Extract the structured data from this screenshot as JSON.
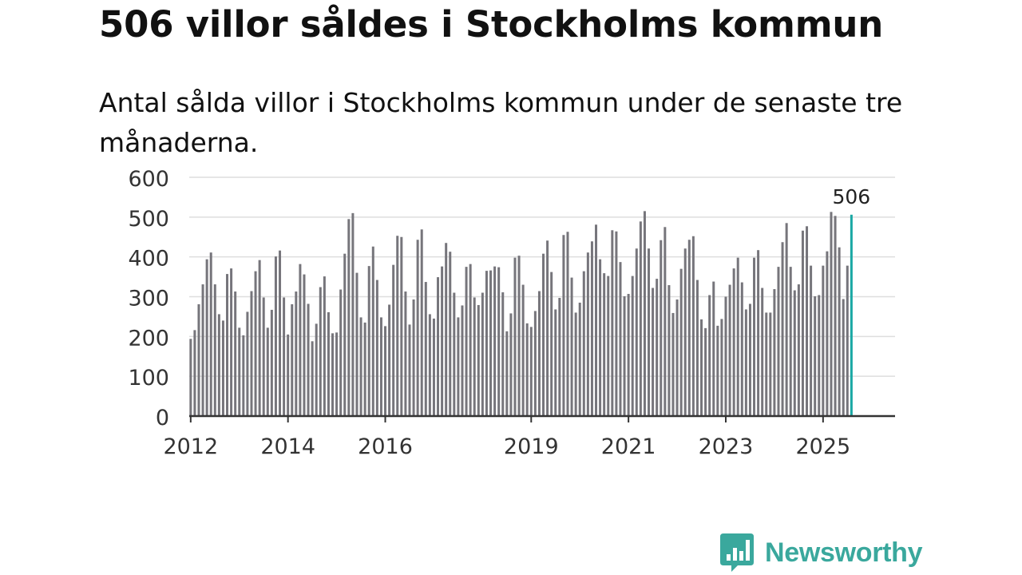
{
  "title": "506 villor såldes i Stockholms kommun",
  "subtitle": "Antal sålda villor i Stockholms kommun under de senaste tre månaderna.",
  "brand": {
    "name": "Newsworthy",
    "color": "#3aa89d",
    "icon": "bar-chart-bubble-icon"
  },
  "colors": {
    "bar": "#76757b",
    "highlight": "#1aa8a4",
    "grid": "#dedede",
    "axis": "#333333"
  },
  "chart_data": {
    "type": "bar",
    "title": "506 villor såldes i Stockholms kommun",
    "subtitle": "Antal sålda villor i Stockholms kommun under de senaste tre månaderna.",
    "xlabel": "",
    "ylabel": "",
    "ylim": [
      0,
      600
    ],
    "yticks": [
      0,
      100,
      200,
      300,
      400,
      500,
      600
    ],
    "xaxis_range": [
      2011.97,
      2026.48
    ],
    "x_tick_labels": [
      "2012",
      "2014",
      "2016",
      "2019",
      "2021",
      "2023",
      "2025"
    ],
    "x_tick_positions": [
      2012,
      2014,
      2016,
      2019,
      2021,
      2023,
      2025
    ],
    "grid": true,
    "annotation": {
      "text": "506",
      "value": 506
    },
    "start_month": "2012-01",
    "values": [
      194,
      216,
      281,
      331,
      394,
      411,
      331,
      256,
      240,
      357,
      371,
      313,
      222,
      203,
      262,
      314,
      364,
      392,
      298,
      222,
      267,
      401,
      416,
      298,
      205,
      281,
      313,
      382,
      356,
      282,
      188,
      232,
      324,
      351,
      261,
      208,
      210,
      318,
      408,
      495,
      510,
      360,
      248,
      235,
      377,
      426,
      342,
      248,
      226,
      280,
      380,
      453,
      450,
      313,
      230,
      293,
      443,
      469,
      337,
      256,
      245,
      349,
      376,
      435,
      413,
      310,
      248,
      278,
      375,
      382,
      298,
      279,
      310,
      365,
      366,
      376,
      374,
      311,
      213,
      258,
      398,
      403,
      330,
      233,
      224,
      264,
      314,
      408,
      441,
      362,
      268,
      297,
      455,
      463,
      348,
      260,
      285,
      364,
      411,
      439,
      481,
      394,
      359,
      352,
      467,
      464,
      387,
      301,
      307,
      352,
      421,
      489,
      515,
      421,
      322,
      345,
      442,
      475,
      329,
      259,
      293,
      370,
      421,
      443,
      452,
      342,
      243,
      221,
      304,
      338,
      227,
      244,
      300,
      330,
      371,
      398,
      336,
      268,
      282,
      398,
      417,
      322,
      260,
      260,
      319,
      375,
      437,
      485,
      375,
      316,
      331,
      466,
      477,
      378,
      301,
      304,
      378,
      414,
      513,
      503,
      424,
      294,
      378,
      506
    ]
  }
}
